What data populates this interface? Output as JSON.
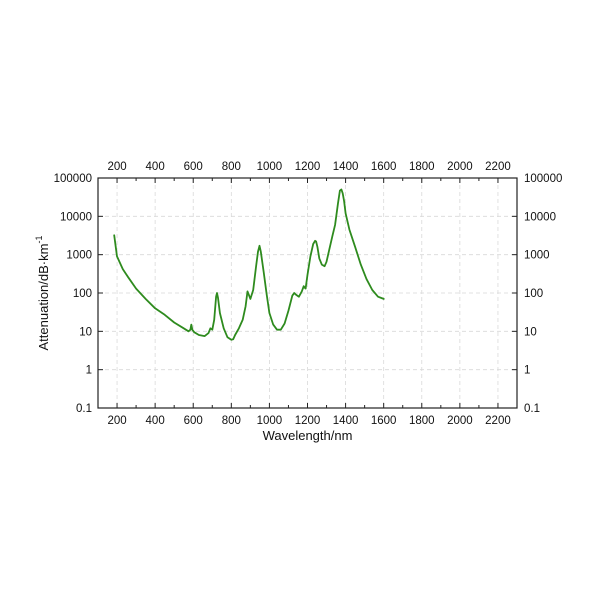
{
  "chart_data": {
    "type": "line",
    "xlabel": "Wavelength/nm",
    "ylabel_main": "Attenuation/dB·km",
    "ylabel_superscript": "-1",
    "xlim": [
      100,
      2300
    ],
    "ylim": [
      0.1,
      100000
    ],
    "y_scale": "log",
    "grid": true,
    "line_color": "#2e8b1e",
    "x_ticks": [
      200,
      400,
      600,
      800,
      1000,
      1200,
      1400,
      1600,
      1800,
      2000,
      2200
    ],
    "x_tick_labels": [
      "200",
      "400",
      "600",
      "800",
      "1000",
      "1200",
      "1400",
      "1600",
      "1800",
      "2000",
      "2200"
    ],
    "y_ticks": [
      0.1,
      1,
      10,
      100,
      1000,
      10000,
      100000
    ],
    "y_tick_labels": [
      "0.1",
      "1",
      "10",
      "100",
      "1000",
      "10000",
      "100000"
    ],
    "series": [
      {
        "x": [
          185,
          200,
          230,
          260,
          300,
          350,
          400,
          450,
          500,
          550,
          575,
          585,
          590,
          595,
          605,
          630,
          660,
          680,
          690,
          700,
          710,
          720,
          725,
          730,
          740,
          760,
          780,
          800,
          810,
          820,
          840,
          860,
          875,
          885,
          890,
          900,
          915,
          930,
          940,
          948,
          955,
          970,
          985,
          1000,
          1020,
          1040,
          1060,
          1080,
          1100,
          1120,
          1130,
          1140,
          1155,
          1170,
          1180,
          1190,
          1200,
          1215,
          1230,
          1240,
          1245,
          1252,
          1262,
          1275,
          1290,
          1300,
          1315,
          1330,
          1345,
          1360,
          1370,
          1378,
          1385,
          1392,
          1400,
          1420,
          1450,
          1480,
          1510,
          1540,
          1570,
          1600
        ],
        "y": [
          3200,
          900,
          420,
          250,
          130,
          70,
          40,
          27,
          17,
          12,
          10,
          11,
          15,
          11,
          9.5,
          8,
          7.5,
          9,
          12,
          11,
          20,
          80,
          100,
          75,
          30,
          12,
          7,
          6,
          6.2,
          8,
          12,
          20,
          45,
          110,
          95,
          70,
          120,
          500,
          1200,
          1700,
          1200,
          350,
          95,
          30,
          15,
          11,
          11,
          16,
          35,
          85,
          100,
          90,
          80,
          110,
          150,
          130,
          300,
          900,
          1900,
          2300,
          2200,
          1600,
          800,
          550,
          500,
          650,
          1400,
          3000,
          6000,
          22000,
          47000,
          50000,
          40000,
          25000,
          12000,
          4500,
          1600,
          550,
          230,
          120,
          80,
          70
        ]
      }
    ]
  }
}
